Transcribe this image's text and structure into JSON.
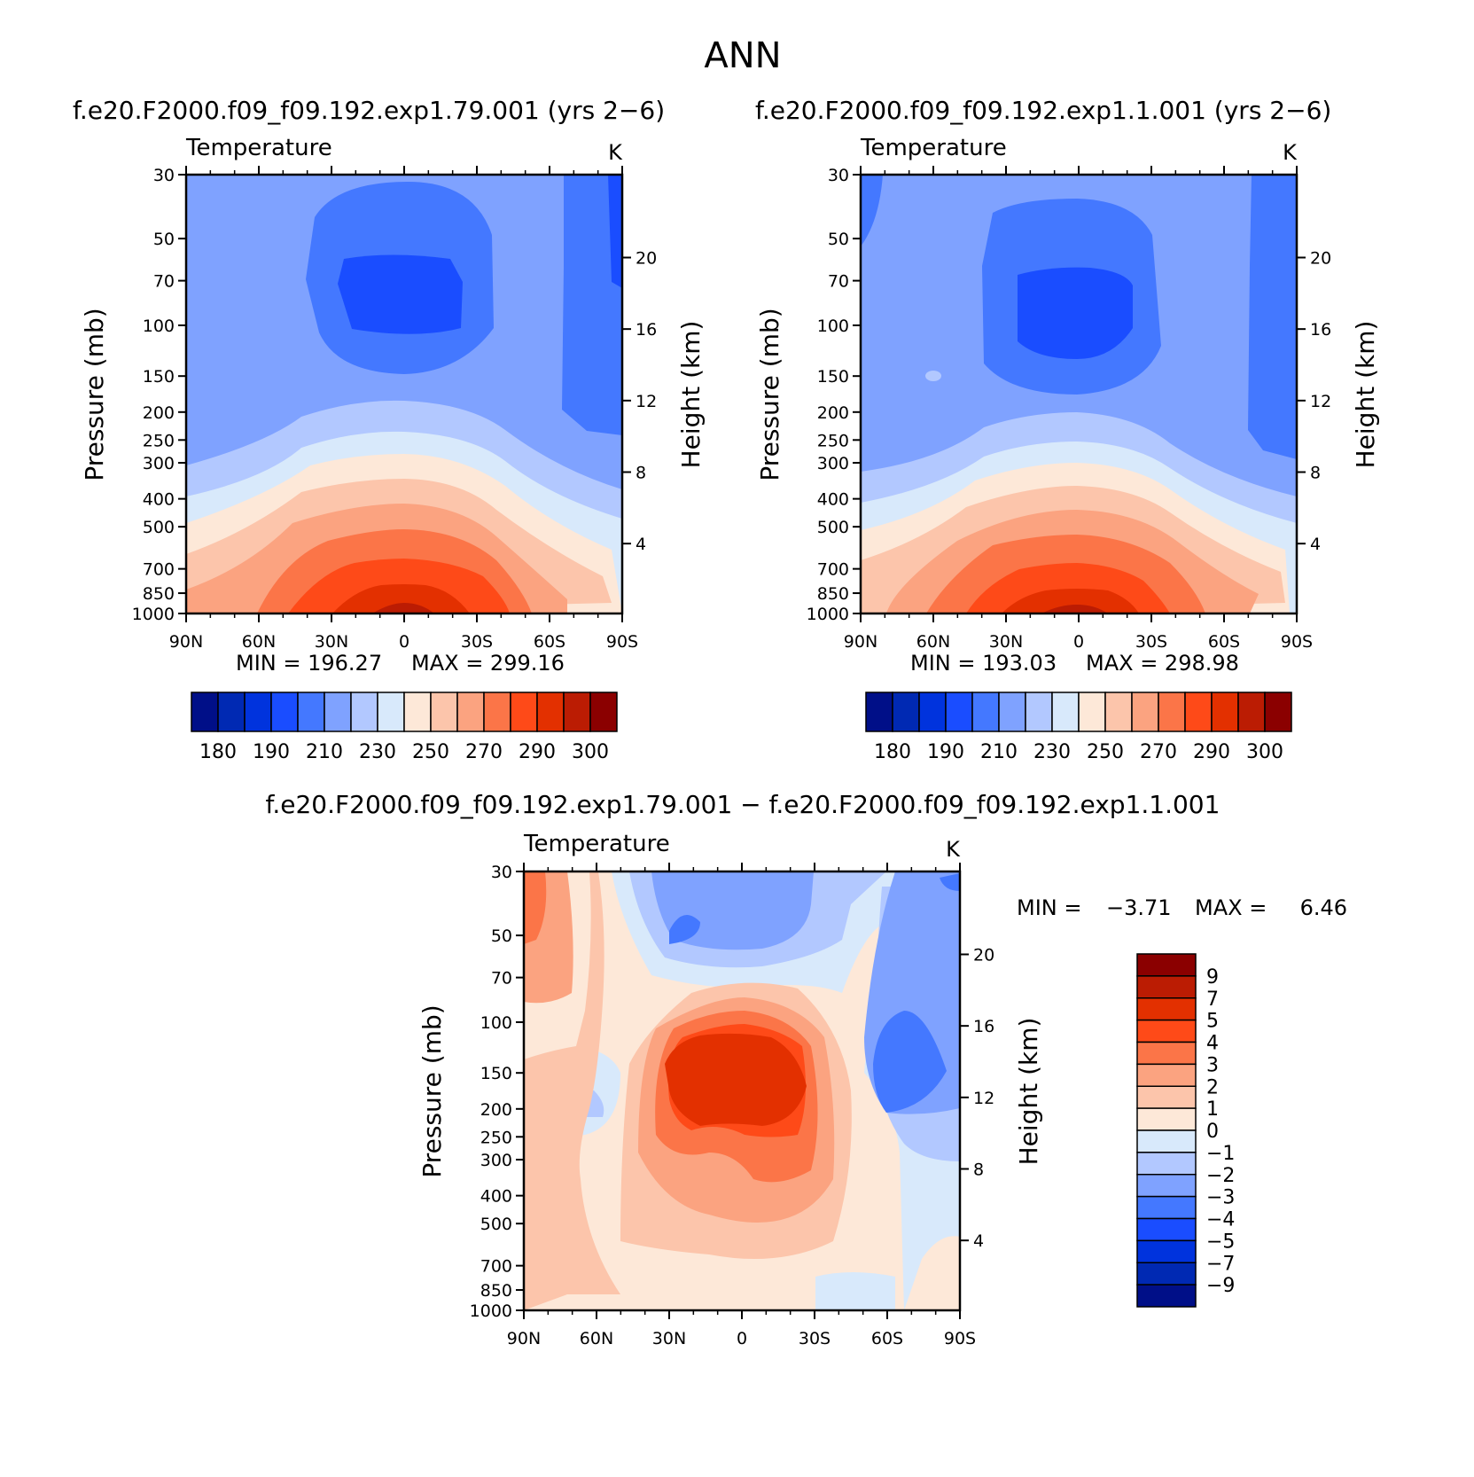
{
  "page_title": "ANN",
  "chart_data": [
    {
      "id": "panel-a",
      "type": "contour",
      "header": "f.e20.F2000.f09_f09.192.exp1.79.001 (yrs 2−6)",
      "title": "Temperature",
      "units": "K",
      "ylabel": "Pressure (mb)",
      "ylabel_right": "Height (km)",
      "x_ticks": [
        "90N",
        "60N",
        "30N",
        "0",
        "30S",
        "60S",
        "90S"
      ],
      "x_lat": [
        90,
        60,
        30,
        0,
        -30,
        -60,
        -90
      ],
      "y_ticks": [
        30,
        50,
        70,
        100,
        150,
        200,
        250,
        300,
        400,
        500,
        700,
        850,
        1000
      ],
      "height_ticks": [
        20,
        16,
        12,
        8,
        4
      ],
      "ylim": [
        1000,
        30
      ],
      "min_text": "MIN = 196.27",
      "max_text": "MAX = 299.16",
      "min_value": 196.27,
      "max_value": 299.16,
      "colorbar": {
        "colors": [
          "#000f88",
          "#0029b3",
          "#0033dd",
          "#1a4dff",
          "#4478ff",
          "#7fa2ff",
          "#b2c8ff",
          "#d8e9fb",
          "#fde8d8",
          "#fcc5ab",
          "#fba380",
          "#fb7548",
          "#fe4a18",
          "#e33000",
          "#bb1c03",
          "#8b0000"
        ],
        "labels": [
          "180",
          "190",
          "210",
          "230",
          "250",
          "270",
          "290",
          "300"
        ]
      }
    },
    {
      "id": "panel-b",
      "type": "contour",
      "header": "f.e20.F2000.f09_f09.192.exp1.1.001 (yrs 2−6)",
      "title": "Temperature",
      "units": "K",
      "ylabel": "Pressure (mb)",
      "ylabel_right": "Height (km)",
      "x_ticks": [
        "90N",
        "60N",
        "30N",
        "0",
        "30S",
        "60S",
        "90S"
      ],
      "x_lat": [
        90,
        60,
        30,
        0,
        -30,
        -60,
        -90
      ],
      "y_ticks": [
        30,
        50,
        70,
        100,
        150,
        200,
        250,
        300,
        400,
        500,
        700,
        850,
        1000
      ],
      "height_ticks": [
        20,
        16,
        12,
        8,
        4
      ],
      "ylim": [
        1000,
        30
      ],
      "min_text": "MIN = 193.03",
      "max_text": "MAX = 298.98",
      "min_value": 193.03,
      "max_value": 298.98,
      "colorbar": {
        "colors": [
          "#000f88",
          "#0029b3",
          "#0033dd",
          "#1a4dff",
          "#4478ff",
          "#7fa2ff",
          "#b2c8ff",
          "#d8e9fb",
          "#fde8d8",
          "#fcc5ab",
          "#fba380",
          "#fb7548",
          "#fe4a18",
          "#e33000",
          "#bb1c03",
          "#8b0000"
        ],
        "labels": [
          "180",
          "190",
          "210",
          "230",
          "250",
          "270",
          "290",
          "300"
        ]
      }
    },
    {
      "id": "panel-diff",
      "type": "contour",
      "header": "f.e20.F2000.f09_f09.192.exp1.79.001 − f.e20.F2000.f09_f09.192.exp1.1.001",
      "title": "Temperature",
      "units": "K",
      "ylabel": "Pressure (mb)",
      "ylabel_right": "Height (km)",
      "x_ticks": [
        "90N",
        "60N",
        "30N",
        "0",
        "30S",
        "60S",
        "90S"
      ],
      "x_lat": [
        90,
        60,
        30,
        0,
        -30,
        -60,
        -90
      ],
      "y_ticks": [
        30,
        50,
        70,
        100,
        150,
        200,
        250,
        300,
        400,
        500,
        700,
        850,
        1000
      ],
      "height_ticks": [
        20,
        16,
        12,
        8,
        4
      ],
      "ylim": [
        1000,
        30
      ],
      "min_text": "MIN =",
      "min_value_text": "−3.71",
      "max_text": "MAX =",
      "max_value_text": "6.46",
      "min_value": -3.71,
      "max_value": 6.46,
      "colorbar": {
        "colors": [
          "#8b0000",
          "#bb1c03",
          "#e33000",
          "#fe4a18",
          "#fb7548",
          "#fba380",
          "#fcc5ab",
          "#fde8d8",
          "#d8e9fb",
          "#b2c8ff",
          "#7fa2ff",
          "#4478ff",
          "#1a4dff",
          "#0033dd",
          "#0029b3",
          "#000f88"
        ],
        "labels": [
          "9",
          "7",
          "5",
          "4",
          "3",
          "2",
          "1",
          "0",
          "−1",
          "−2",
          "−3",
          "−4",
          "−5",
          "−7",
          "−9"
        ]
      }
    }
  ]
}
